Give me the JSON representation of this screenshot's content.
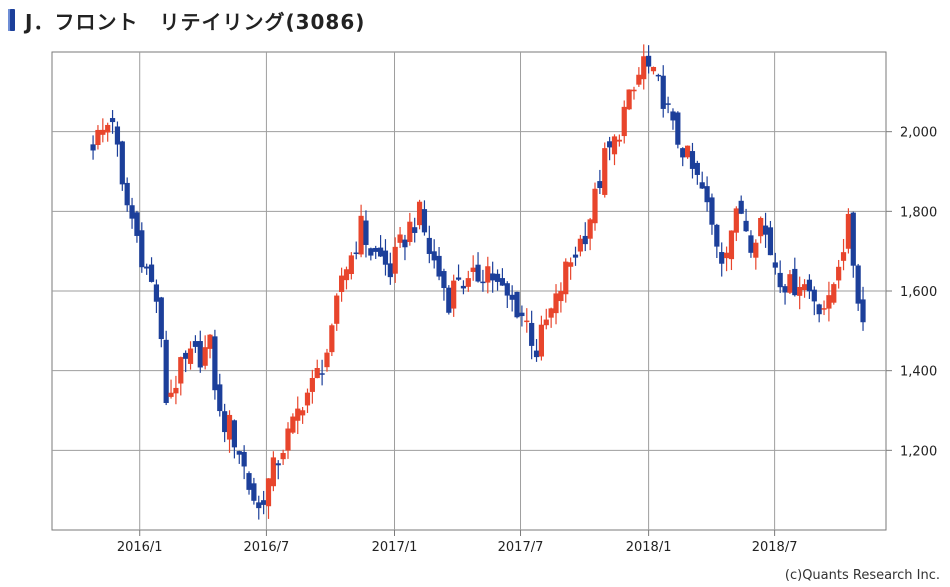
{
  "title": "J．フロント　リテイリング(3086)",
  "credit": "(c)Quants Research Inc.",
  "colors": {
    "up": "#e8452c",
    "down": "#1c3f9a",
    "grid": "#9e9e9e",
    "frame": "#7a7a7a"
  },
  "chart_data": {
    "type": "candlestick",
    "title": "J．フロント　リテイリング(3086)",
    "y_axis_position": "right",
    "ylim": [
      1000,
      2200
    ],
    "y_ticks": [
      1200,
      1400,
      1600,
      1800,
      2000
    ],
    "y_tick_labels": [
      "1,200",
      "1,400",
      "1,600",
      "1,800",
      "2,000"
    ],
    "xlim": [
      "2015-08-28",
      "2018-12-08"
    ],
    "x_ticks": [
      "2016-01-01",
      "2016-07-01",
      "2017-01-01",
      "2017-07-01",
      "2018-01-01",
      "2018-07-01"
    ],
    "x_tick_labels": [
      "2016/1",
      "2016/7",
      "2017/1",
      "2017/7",
      "2018/1",
      "2018/7"
    ],
    "grid": true,
    "series": [
      {
        "type": "close_path",
        "dates": [
          "2015-10-26",
          "2015-11-09",
          "2015-11-23",
          "2015-12-07",
          "2015-12-21",
          "2016-01-11",
          "2016-01-25",
          "2016-02-08",
          "2016-02-15",
          "2016-02-29",
          "2016-03-14",
          "2016-03-28",
          "2016-04-11",
          "2016-04-25",
          "2016-05-09",
          "2016-05-23",
          "2016-06-06",
          "2016-06-20",
          "2016-06-27",
          "2016-07-11",
          "2016-07-25",
          "2016-08-08",
          "2016-08-22",
          "2016-09-05",
          "2016-09-19",
          "2016-10-03",
          "2016-10-17",
          "2016-10-31",
          "2016-11-14",
          "2016-11-28",
          "2016-12-12",
          "2016-12-26",
          "2017-01-09",
          "2017-01-23",
          "2017-02-06",
          "2017-02-20",
          "2017-03-06",
          "2017-03-20",
          "2017-04-03",
          "2017-04-17",
          "2017-05-01",
          "2017-05-15",
          "2017-05-29",
          "2017-06-12",
          "2017-06-26",
          "2017-07-10",
          "2017-07-24",
          "2017-08-07",
          "2017-08-21",
          "2017-09-04",
          "2017-09-18",
          "2017-10-02",
          "2017-10-16",
          "2017-10-30",
          "2017-11-13",
          "2017-11-27",
          "2017-12-11",
          "2017-12-25",
          "2018-01-08",
          "2018-01-22",
          "2018-02-05",
          "2018-02-19",
          "2018-03-05",
          "2018-03-19",
          "2018-04-02",
          "2018-04-16",
          "2018-04-30",
          "2018-05-14",
          "2018-05-28",
          "2018-06-11",
          "2018-06-25",
          "2018-07-09",
          "2018-07-23",
          "2018-08-06",
          "2018-08-20",
          "2018-09-03",
          "2018-09-17",
          "2018-10-01",
          "2018-10-15",
          "2018-10-29",
          "2018-11-05"
        ],
        "close": [
          1975,
          2000,
          2040,
          1850,
          1780,
          1650,
          1580,
          1330,
          1350,
          1400,
          1430,
          1440,
          1460,
          1280,
          1260,
          1200,
          1110,
          1050,
          1090,
          1150,
          1210,
          1260,
          1330,
          1360,
          1420,
          1480,
          1640,
          1690,
          1760,
          1700,
          1680,
          1650,
          1710,
          1760,
          1790,
          1700,
          1640,
          1580,
          1640,
          1610,
          1640,
          1660,
          1610,
          1580,
          1560,
          1520,
          1450,
          1520,
          1570,
          1650,
          1700,
          1750,
          1830,
          1930,
          1970,
          2050,
          2100,
          2180,
          2130,
          2090,
          2000,
          1960,
          1900,
          1850,
          1760,
          1690,
          1760,
          1800,
          1730,
          1780,
          1700,
          1640,
          1610,
          1630,
          1600,
          1570,
          1560,
          1680,
          1760,
          1590,
          1520
        ]
      }
    ]
  }
}
